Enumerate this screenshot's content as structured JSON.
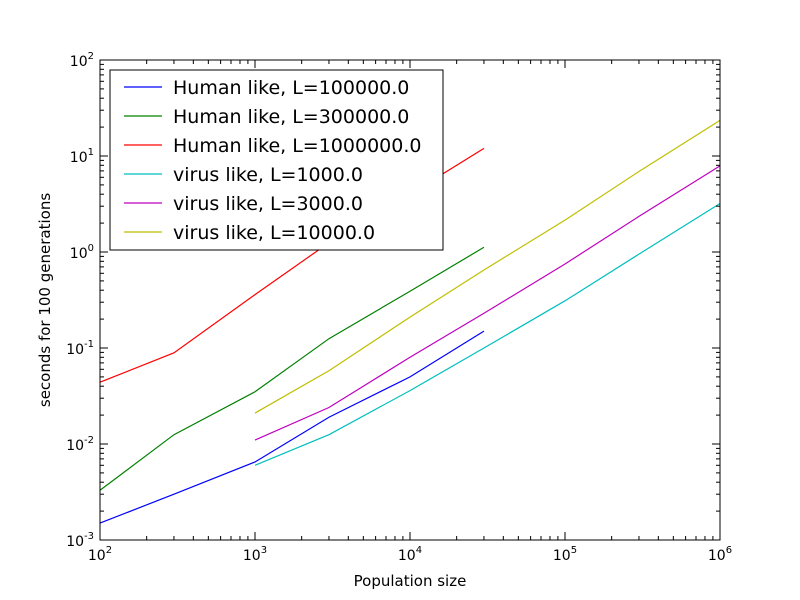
{
  "chart_data": {
    "type": "line",
    "title": "",
    "xlabel": "Population size",
    "ylabel": "seconds for 100 generations",
    "xscale": "log",
    "yscale": "log",
    "xlim": [
      100,
      1000000
    ],
    "ylim": [
      0.001,
      100
    ],
    "grid": false,
    "legend_position": "top-left",
    "x_ticks": [
      {
        "value": 100,
        "base": "10",
        "exp": "2"
      },
      {
        "value": 1000,
        "base": "10",
        "exp": "3"
      },
      {
        "value": 10000,
        "base": "10",
        "exp": "4"
      },
      {
        "value": 100000,
        "base": "10",
        "exp": "5"
      },
      {
        "value": 1000000,
        "base": "10",
        "exp": "6"
      }
    ],
    "y_ticks": [
      {
        "value": 0.001,
        "base": "10",
        "exp": "-3"
      },
      {
        "value": 0.01,
        "base": "10",
        "exp": "-2"
      },
      {
        "value": 0.1,
        "base": "10",
        "exp": "-1"
      },
      {
        "value": 1,
        "base": "10",
        "exp": "0"
      },
      {
        "value": 10,
        "base": "10",
        "exp": "1"
      },
      {
        "value": 100,
        "base": "10",
        "exp": "2"
      }
    ],
    "series": [
      {
        "name": "Human like, L=100000.0",
        "color": "#0000ff",
        "x": [
          100,
          300,
          1000,
          3000,
          10000,
          30000
        ],
        "y": [
          0.0015,
          0.003,
          0.0065,
          0.019,
          0.05,
          0.15
        ]
      },
      {
        "name": "Human like, L=300000.0",
        "color": "#008000",
        "x": [
          100,
          300,
          1000,
          3000,
          10000,
          30000
        ],
        "y": [
          0.0033,
          0.0125,
          0.035,
          0.125,
          0.39,
          1.12
        ]
      },
      {
        "name": "Human like, L=1000000.0",
        "color": "#ff0000",
        "x": [
          100,
          300,
          1000,
          3000,
          10000,
          30000
        ],
        "y": [
          0.044,
          0.089,
          0.36,
          1.25,
          4.0,
          12.0
        ]
      },
      {
        "name": "virus like, L=1000.0",
        "color": "#00bfbf",
        "x": [
          1000,
          3000,
          10000,
          30000,
          100000,
          300000,
          1000000
        ],
        "y": [
          0.006,
          0.0125,
          0.036,
          0.1,
          0.31,
          0.95,
          3.2
        ]
      },
      {
        "name": "virus like, L=3000.0",
        "color": "#bf00bf",
        "x": [
          1000,
          3000,
          10000,
          30000,
          100000,
          300000,
          1000000
        ],
        "y": [
          0.011,
          0.024,
          0.08,
          0.23,
          0.75,
          2.35,
          7.9
        ]
      },
      {
        "name": "virus like, L=10000.0",
        "color": "#bfbf00",
        "x": [
          1000,
          3000,
          10000,
          30000,
          100000,
          300000,
          1000000
        ],
        "y": [
          0.021,
          0.058,
          0.21,
          0.65,
          2.15,
          6.9,
          23.5
        ]
      }
    ]
  }
}
